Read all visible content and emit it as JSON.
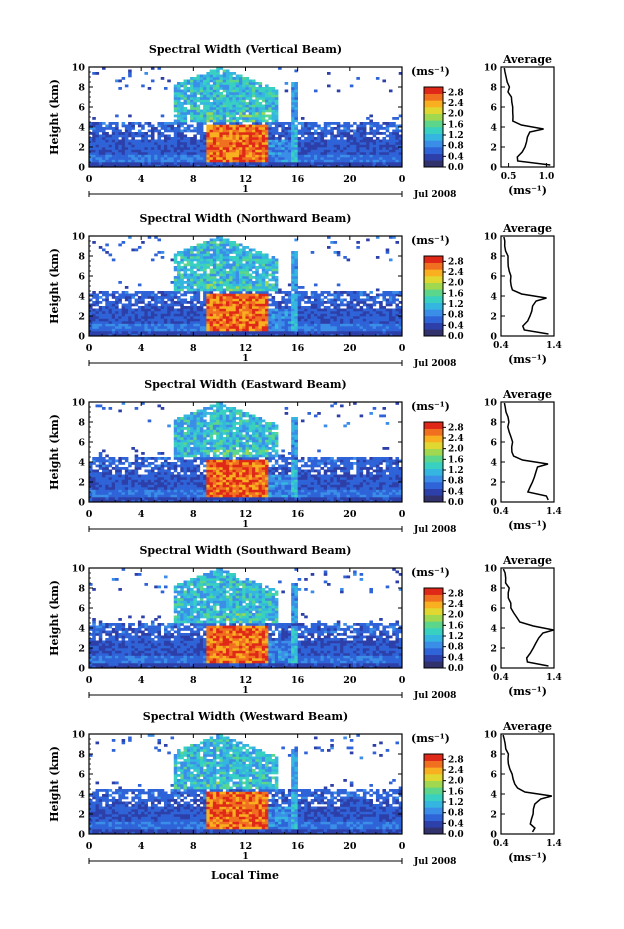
{
  "figure": {
    "xlabel": "Local Time",
    "date_label": "Jul 2008",
    "day_label": "1",
    "avg_title": "Average",
    "unit_label": "(ms⁻¹)",
    "ylabel": "Height (km)"
  },
  "colorbar": {
    "ticks": [
      "0.0",
      "0.4",
      "0.8",
      "1.2",
      "1.6",
      "2.0",
      "2.4",
      "2.8"
    ],
    "range": [
      0,
      3.0
    ],
    "colors": [
      "#31316b",
      "#2d3fa8",
      "#2f63d8",
      "#3a8ee8",
      "#35b6e0",
      "#38d0c0",
      "#5cd68a",
      "#a0d850",
      "#e0d830",
      "#f8b020",
      "#f07020",
      "#e02818"
    ]
  },
  "chart_data": [
    {
      "type": "heatmap",
      "title": "Spectral Width (Vertical Beam)",
      "x_ticks": [
        "0",
        "4",
        "8",
        "12",
        "16",
        "20",
        "0"
      ],
      "xlim": [
        0,
        24
      ],
      "ylim": [
        0,
        10
      ],
      "y_ticks": [
        "0",
        "2",
        "4",
        "6",
        "8",
        "10"
      ],
      "avg": {
        "xlim": [
          0.4,
          1.1
        ],
        "x_ticks": [
          "0.5",
          "1.0"
        ],
        "heights": [
          0.2,
          0.6,
          1.0,
          1.5,
          2.0,
          2.5,
          3.0,
          3.5,
          3.8,
          4.2,
          4.6,
          5.0,
          5.5,
          6.0,
          6.5,
          7.0,
          7.5,
          8.0,
          8.5,
          9.0,
          9.5,
          9.9
        ],
        "values": [
          1.05,
          0.62,
          0.62,
          0.68,
          0.72,
          0.74,
          0.75,
          0.78,
          0.96,
          0.66,
          0.56,
          0.56,
          0.55,
          0.56,
          0.54,
          0.53,
          0.5,
          0.51,
          0.48,
          0.47,
          0.46,
          0.45
        ]
      }
    },
    {
      "type": "heatmap",
      "title": "Spectral Width (Northward Beam)",
      "x_ticks": [
        "0",
        "4",
        "8",
        "12",
        "16",
        "20",
        "0"
      ],
      "xlim": [
        0,
        24
      ],
      "ylim": [
        0,
        10
      ],
      "y_ticks": [
        "0",
        "2",
        "4",
        "6",
        "8",
        "10"
      ],
      "avg": {
        "xlim": [
          0.4,
          1.4
        ],
        "x_ticks": [
          "0.4",
          "1.4"
        ],
        "heights": [
          0.2,
          0.6,
          1.0,
          1.5,
          2.0,
          2.5,
          3.0,
          3.5,
          3.8,
          4.2,
          4.6,
          5.0,
          5.5,
          6.0,
          6.5,
          7.0,
          7.5,
          8.0,
          8.5,
          9.0,
          9.5,
          9.9
        ],
        "values": [
          1.3,
          0.85,
          0.82,
          0.9,
          0.95,
          0.98,
          1.0,
          1.05,
          1.25,
          0.78,
          0.62,
          0.6,
          0.58,
          0.6,
          0.56,
          0.55,
          0.52,
          0.53,
          0.5,
          0.48,
          0.47,
          0.45
        ]
      }
    },
    {
      "type": "heatmap",
      "title": "Spectral Width (Eastward Beam)",
      "x_ticks": [
        "0",
        "4",
        "8",
        "12",
        "16",
        "20",
        "0"
      ],
      "xlim": [
        0,
        24
      ],
      "ylim": [
        0,
        10
      ],
      "y_ticks": [
        "0",
        "2",
        "4",
        "6",
        "8",
        "10"
      ],
      "avg": {
        "xlim": [
          0.4,
          1.4
        ],
        "x_ticks": [
          "0.4",
          "1.4"
        ],
        "heights": [
          0.2,
          0.6,
          1.0,
          1.5,
          2.0,
          2.5,
          3.0,
          3.5,
          3.8,
          4.2,
          4.6,
          5.0,
          5.5,
          6.0,
          6.5,
          7.0,
          7.5,
          8.0,
          8.5,
          9.0,
          9.5,
          9.9
        ],
        "values": [
          1.3,
          1.25,
          0.9,
          0.95,
          1.0,
          1.02,
          1.05,
          1.1,
          1.3,
          0.8,
          0.65,
          0.62,
          0.6,
          0.62,
          0.58,
          0.56,
          0.54,
          0.55,
          0.52,
          0.5,
          0.48,
          0.46
        ]
      }
    },
    {
      "type": "heatmap",
      "title": "Spectral Width (Southward Beam)",
      "x_ticks": [
        "0",
        "4",
        "8",
        "12",
        "16",
        "20",
        "0"
      ],
      "xlim": [
        0,
        24
      ],
      "ylim": [
        0,
        10
      ],
      "y_ticks": [
        "0",
        "2",
        "4",
        "6",
        "8",
        "10"
      ],
      "avg": {
        "xlim": [
          0.4,
          1.4
        ],
        "x_ticks": [
          "0.4",
          "1.4"
        ],
        "heights": [
          0.2,
          0.6,
          1.0,
          1.5,
          2.0,
          2.5,
          3.0,
          3.5,
          3.8,
          4.2,
          4.6,
          5.0,
          5.5,
          6.0,
          6.5,
          7.0,
          7.5,
          8.0,
          8.5,
          9.0,
          9.5,
          9.9
        ],
        "values": [
          1.3,
          0.9,
          0.88,
          0.95,
          1.0,
          1.05,
          1.1,
          1.2,
          1.38,
          1.0,
          0.75,
          0.7,
          0.65,
          0.6,
          0.58,
          0.55,
          0.53,
          0.55,
          0.5,
          0.49,
          0.47,
          0.45
        ]
      }
    },
    {
      "type": "heatmap",
      "title": "Spectral Width (Westward Beam)",
      "x_ticks": [
        "0",
        "4",
        "8",
        "12",
        "16",
        "20",
        "0"
      ],
      "xlim": [
        0,
        24
      ],
      "ylim": [
        0,
        10
      ],
      "y_ticks": [
        "0",
        "2",
        "4",
        "6",
        "8",
        "10"
      ],
      "avg": {
        "xlim": [
          0.4,
          1.4
        ],
        "x_ticks": [
          "0.4",
          "1.4"
        ],
        "heights": [
          0.2,
          0.6,
          1.0,
          1.5,
          2.0,
          2.5,
          3.0,
          3.5,
          3.8,
          4.2,
          4.6,
          5.0,
          5.5,
          6.0,
          6.5,
          7.0,
          7.5,
          8.0,
          8.5,
          9.0,
          9.5,
          9.9
        ],
        "values": [
          1.0,
          1.05,
          0.95,
          0.98,
          1.0,
          1.02,
          1.05,
          1.15,
          1.35,
          0.85,
          0.7,
          0.65,
          0.62,
          0.6,
          0.58,
          0.55,
          0.52,
          0.53,
          0.5,
          0.48,
          0.46,
          0.44
        ]
      }
    }
  ]
}
